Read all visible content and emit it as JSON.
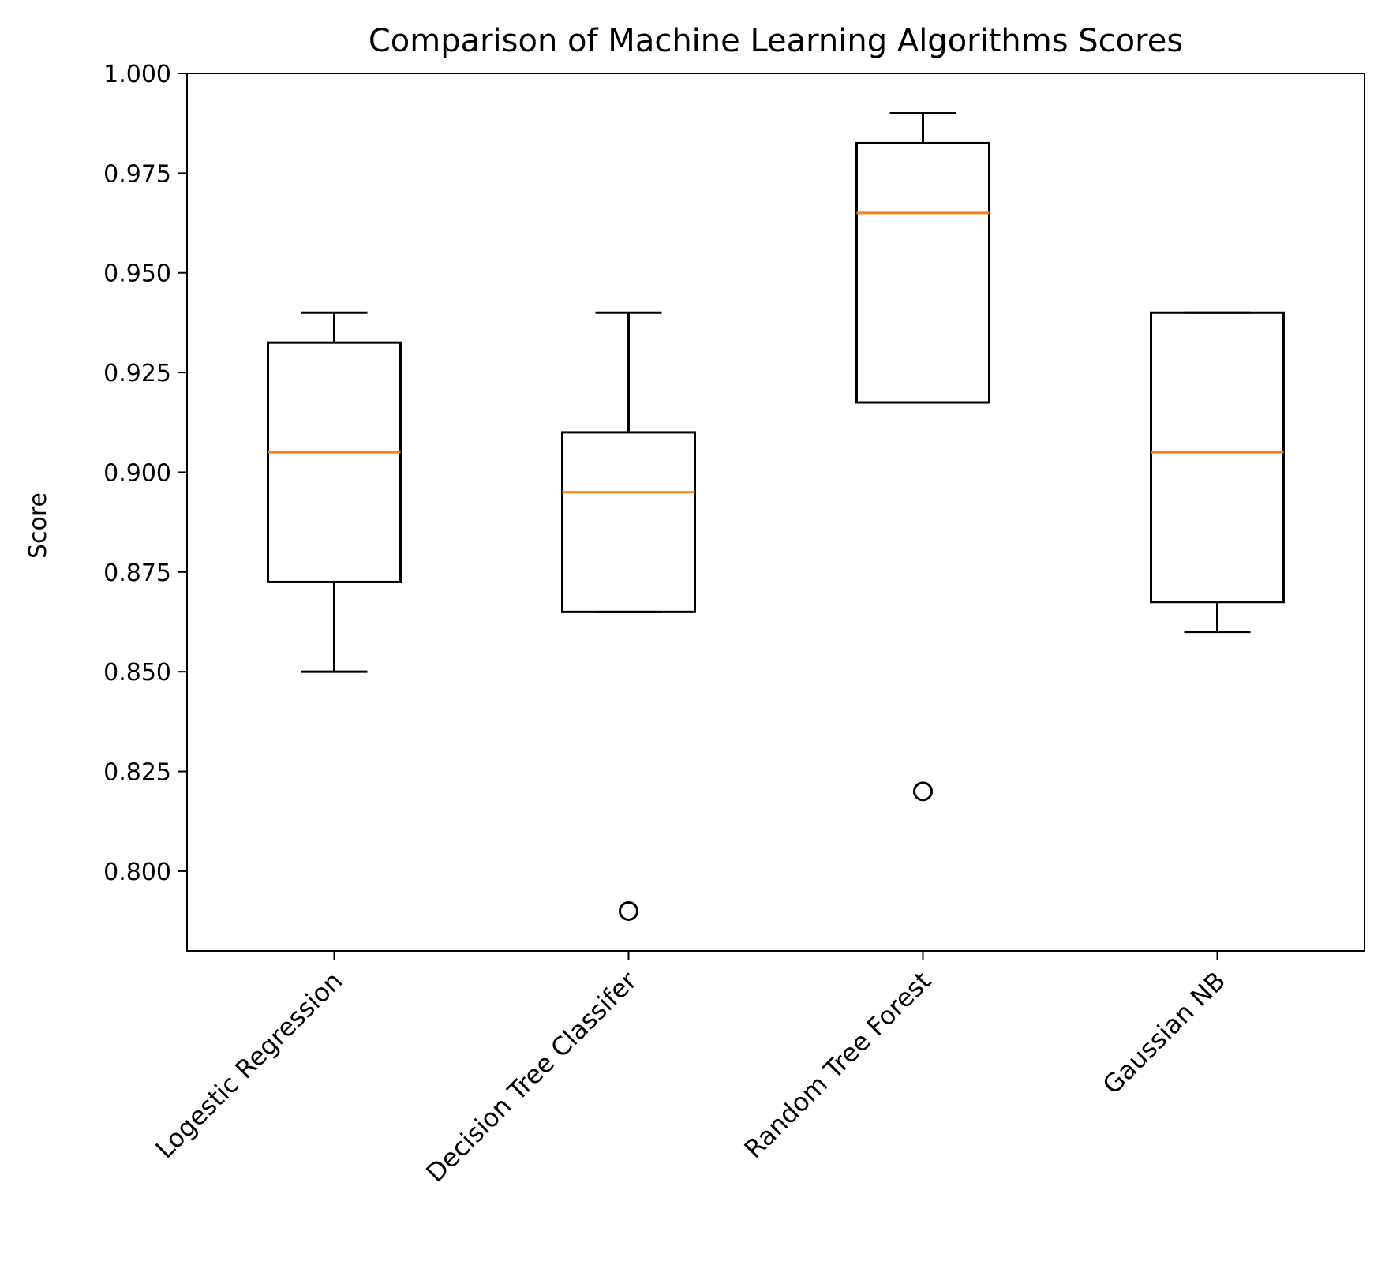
{
  "chart_data": {
    "type": "boxplot",
    "title": "Comparison of Machine Learning Algorithms Scores",
    "xlabel": "",
    "ylabel": "Score",
    "ylim": [
      0.78,
      1.0
    ],
    "yticks": [
      "0.800",
      "0.825",
      "0.850",
      "0.875",
      "0.900",
      "0.925",
      "0.950",
      "0.975",
      "1.000"
    ],
    "grid": false,
    "categories": [
      "Logestic Regression",
      "Decision Tree Classifer",
      "Random Tree Forest",
      "Gaussian NB"
    ],
    "boxes": [
      {
        "whisker_low": 0.85,
        "q1": 0.8725,
        "median": 0.905,
        "q3": 0.9325,
        "whisker_high": 0.94,
        "outliers": []
      },
      {
        "whisker_low": 0.865,
        "q1": 0.865,
        "median": 0.895,
        "q3": 0.91,
        "whisker_high": 0.94,
        "outliers": [
          0.79
        ]
      },
      {
        "whisker_low": 0.9175,
        "q1": 0.9175,
        "median": 0.965,
        "q3": 0.9825,
        "whisker_high": 0.99,
        "outliers": [
          0.82
        ]
      },
      {
        "whisker_low": 0.86,
        "q1": 0.8675,
        "median": 0.905,
        "q3": 0.94,
        "whisker_high": 0.94,
        "outliers": []
      }
    ],
    "colors": {
      "box": "#000000",
      "median": "#ff7f0e",
      "outlier": "#000000"
    }
  }
}
